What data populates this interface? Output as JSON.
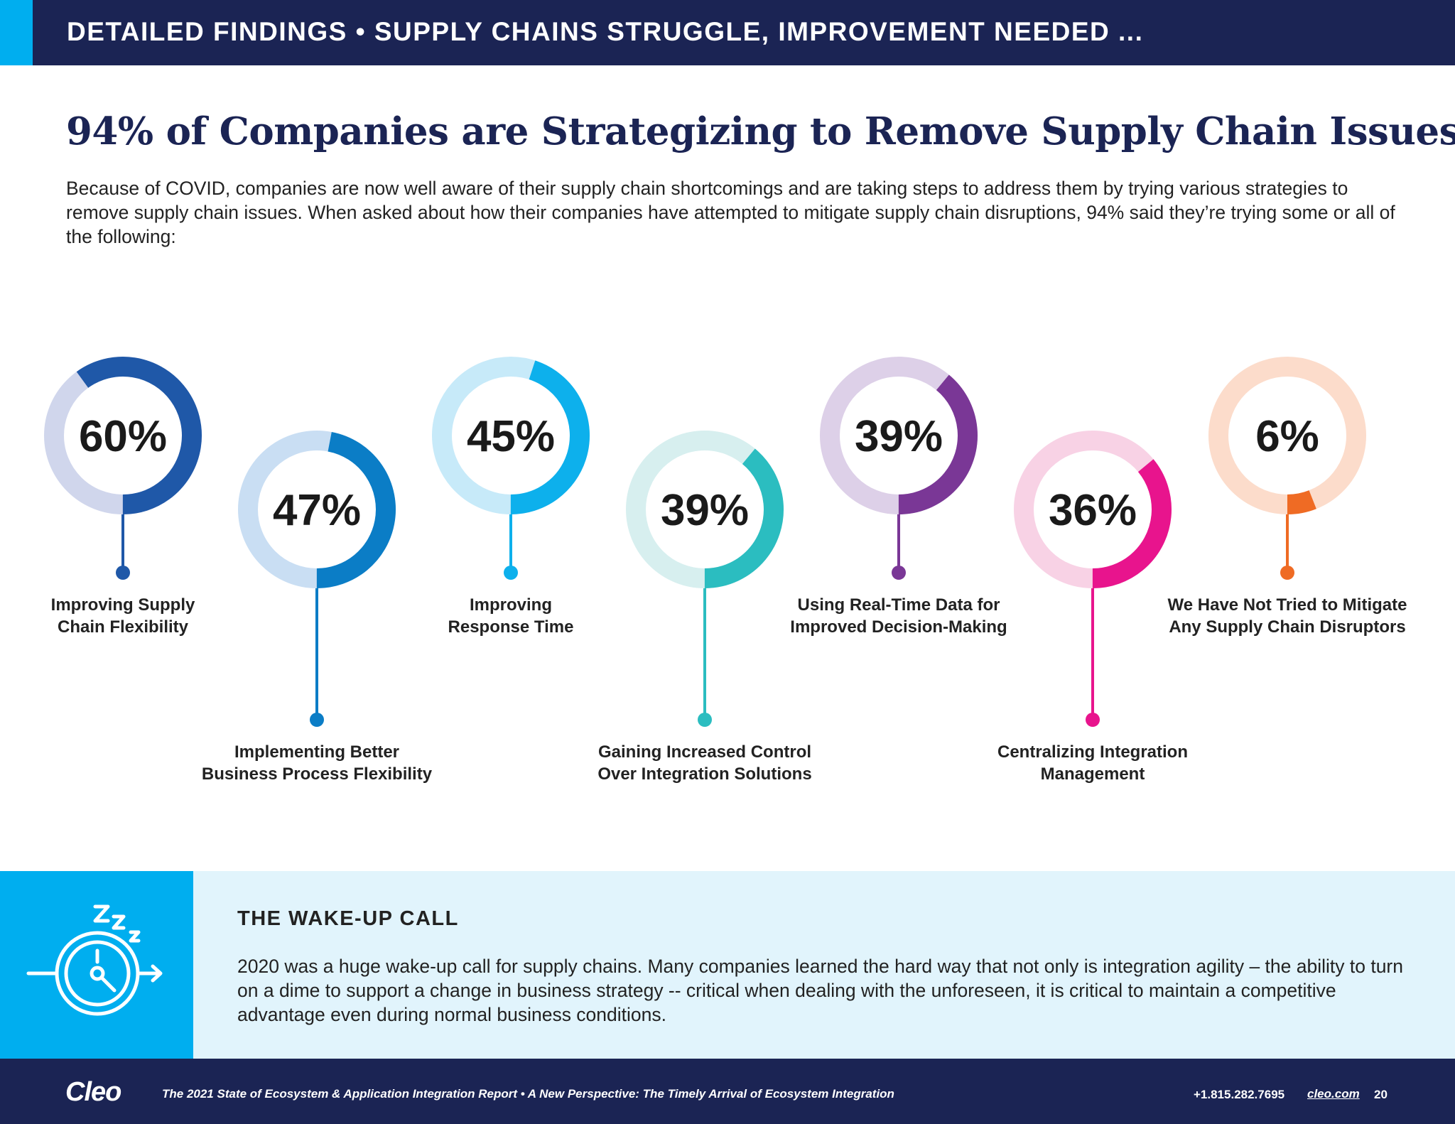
{
  "header": {
    "title": "DETAILED FINDINGS  • SUPPLY CHAINS STRUGGLE, IMPROVEMENT NEEDED ..."
  },
  "headline": "94% of Companies are Strategizing to Remove Supply Chain Issues",
  "intro": "Because of COVID, companies are now well aware of their supply chain shortcomings and are taking steps to address them by trying various strategies to remove supply chain issues. When asked about how their companies have attempted to mitigate supply chain disruptions, 94% said they’re trying some or all of the following:",
  "chart_data": {
    "type": "donut",
    "series": [
      {
        "label_line1": "Improving Supply",
        "label_line2": "Chain Flexibility",
        "value": 60,
        "display": "60%",
        "color": "#1f58a8",
        "track": "#d0d6ec"
      },
      {
        "label_line1": "Implementing Better",
        "label_line2": "Business Process Flexibility",
        "value": 47,
        "display": "47%",
        "color": "#0b7dc6",
        "track": "#c9def3"
      },
      {
        "label_line1": "Improving",
        "label_line2": "Response Time",
        "value": 45,
        "display": "45%",
        "color": "#0db0ec",
        "track": "#c7eaf9"
      },
      {
        "label_line1": "Gaining Increased Control",
        "label_line2": "Over Integration Solutions",
        "value": 39,
        "display": "39%",
        "color": "#2bbdc0",
        "track": "#d7efef"
      },
      {
        "label_line1": "Using Real-Time Data for",
        "label_line2": "Improved Decision-Making",
        "value": 39,
        "display": "39%",
        "color": "#7a3796",
        "track": "#ddd0e8"
      },
      {
        "label_line1": "Centralizing Integration",
        "label_line2": "Management",
        "value": 36,
        "display": "36%",
        "color": "#e8148d",
        "track": "#f8d2e5"
      },
      {
        "label_line1": "We Have Not Tried to Mitigate",
        "label_line2": "Any Supply Chain Disruptors",
        "value": 6,
        "display": "6%",
        "color": "#ef6b24",
        "track": "#fcdccb"
      }
    ]
  },
  "wake": {
    "title": "THE WAKE-UP CALL",
    "text": "2020 was a huge wake-up call for supply chains. Many companies learned the hard way that not only is integration agility – the ability to turn on a dime to support a change in business strategy -- critical when dealing with the unforeseen, it is critical to maintain a competitive advantage even during normal business conditions.",
    "icon": "clock-snooze-icon"
  },
  "footer": {
    "logo": "Cleo",
    "report": "The 2021 State of Ecosystem & Application Integration Report  •  A New Perspective: The Timely Arrival of Ecosystem Integration",
    "phone": "+1.815.282.7695",
    "site": "cleo.com",
    "page": "20"
  }
}
